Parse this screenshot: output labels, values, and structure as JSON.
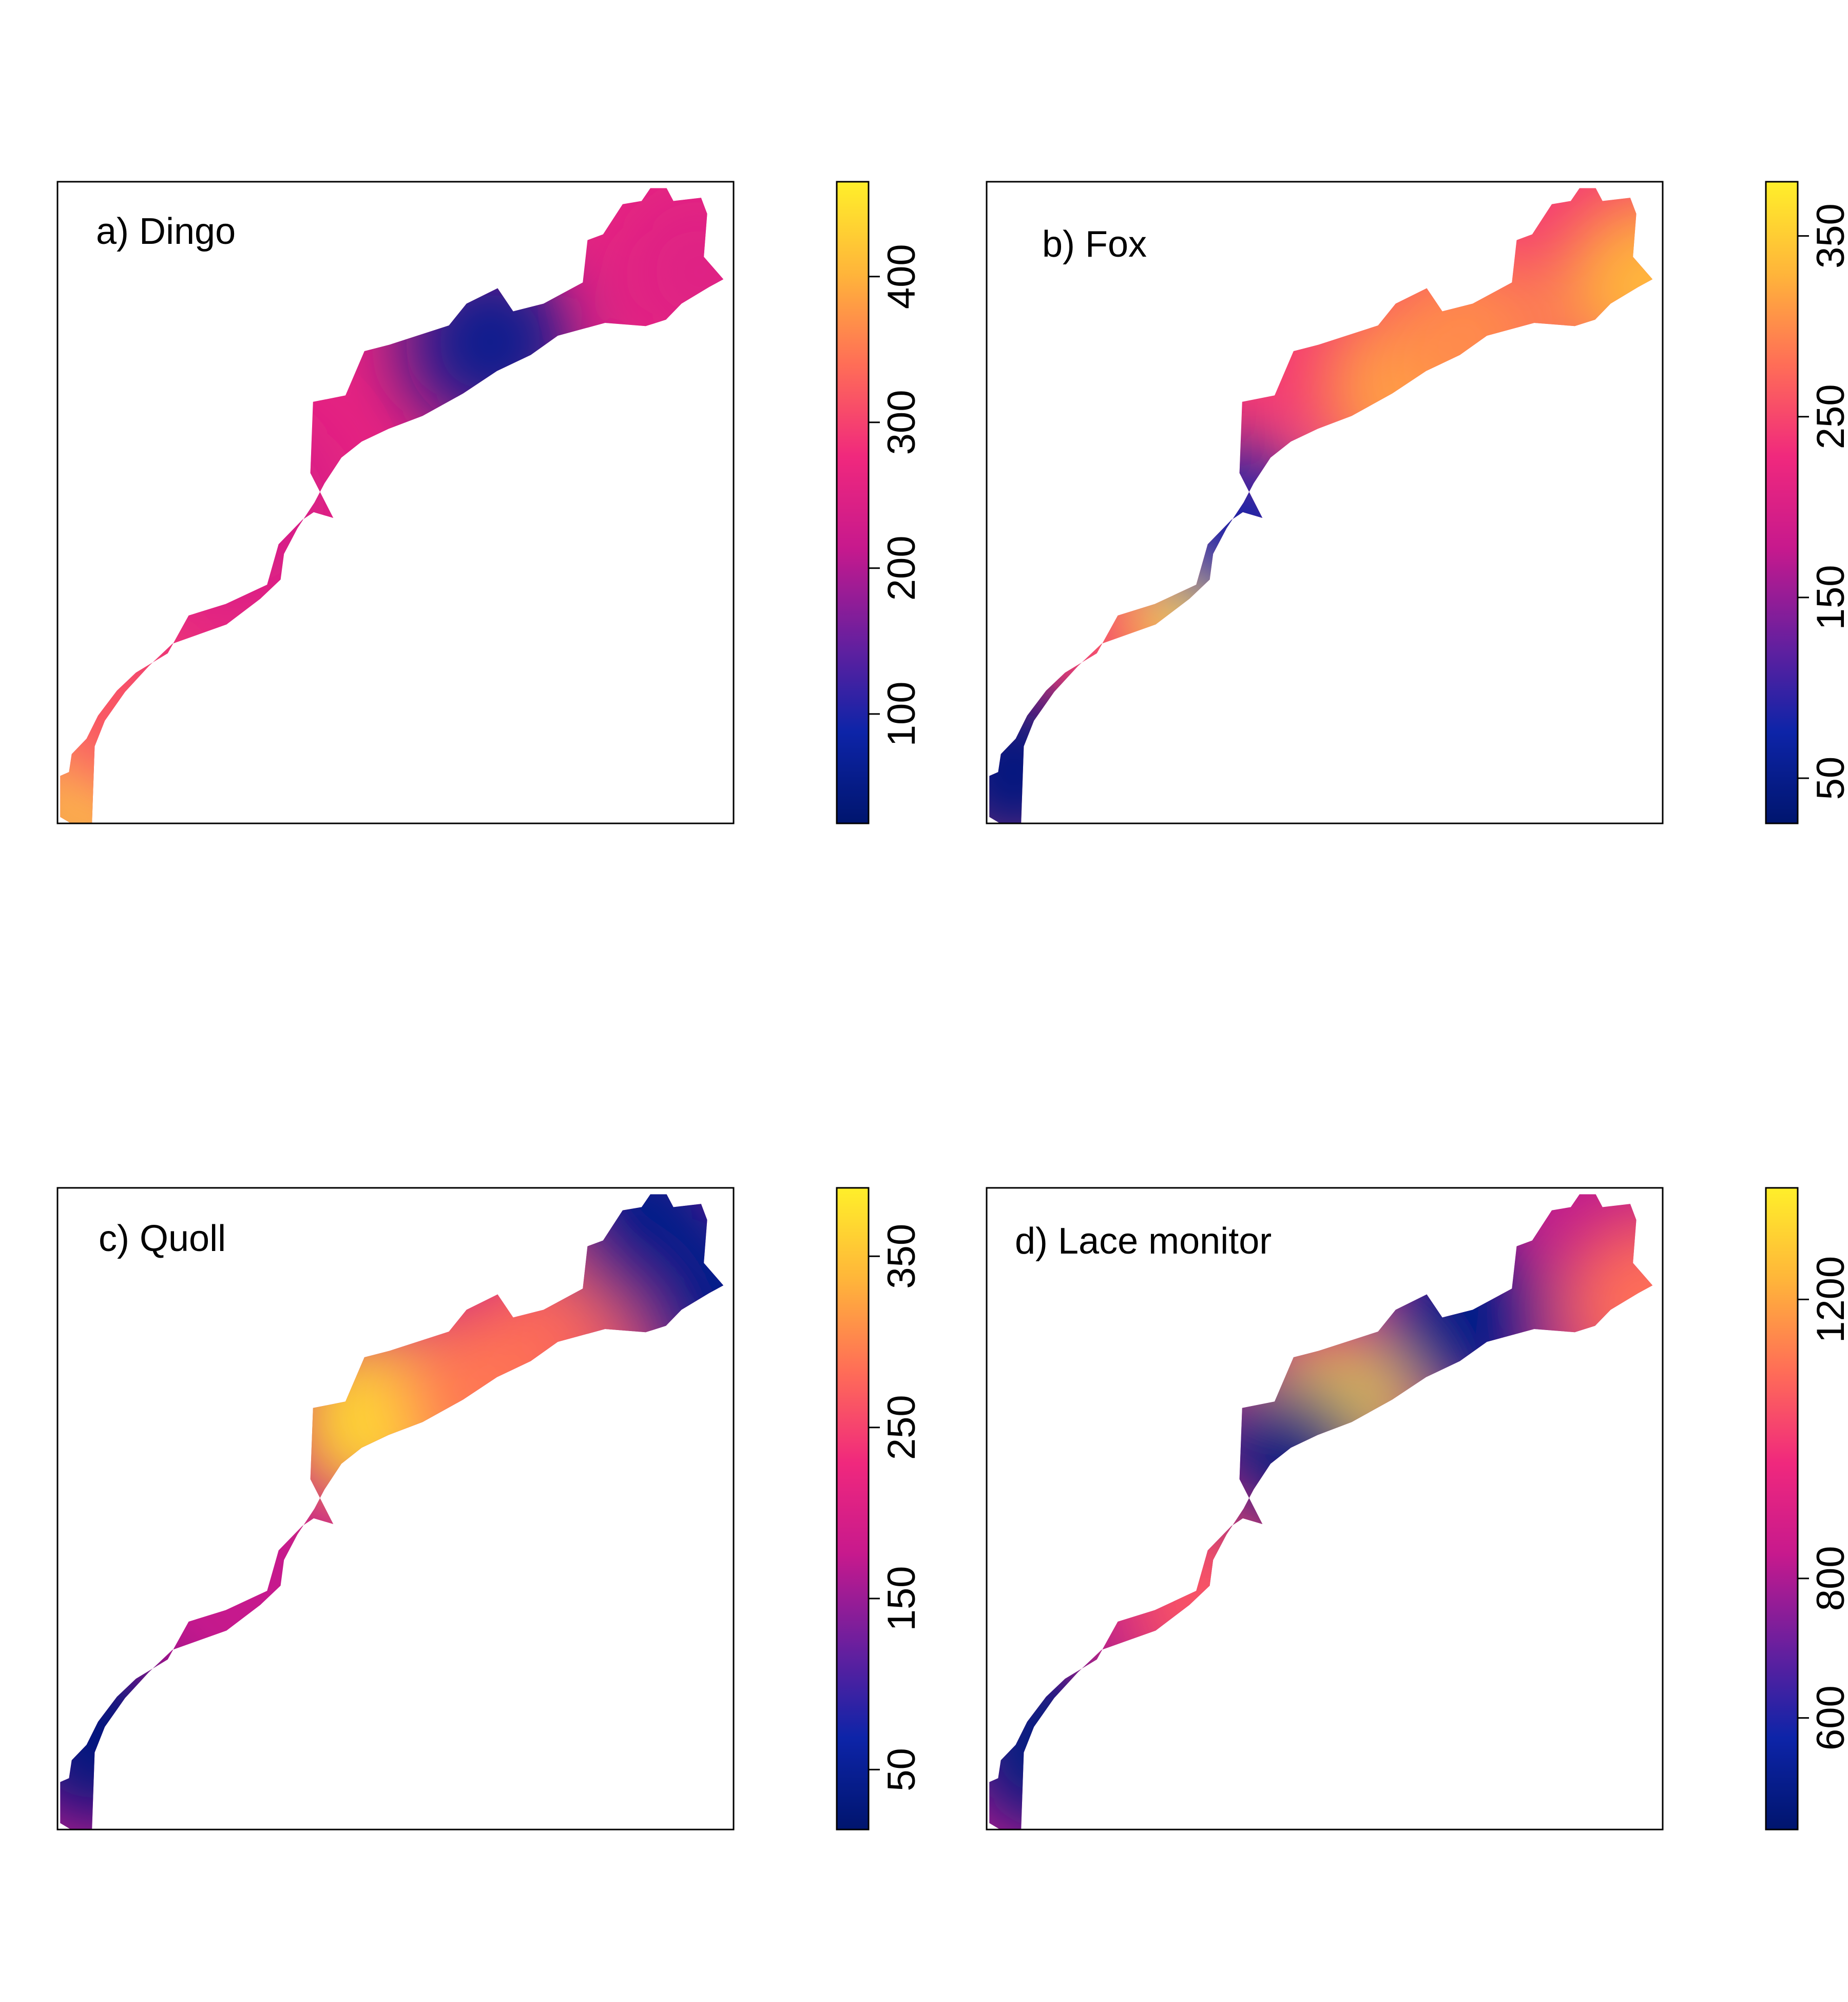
{
  "chart_data": [
    {
      "type": "heatmap",
      "title": "a) Dingo",
      "colorbar": {
        "range": [
          25,
          465
        ],
        "ticks": [
          100,
          200,
          300,
          400
        ],
        "colors": [
          "#00156e",
          "#0d24a8",
          "#6a1f9e",
          "#c7198d",
          "#f0287d",
          "#ff6d57",
          "#ffb53a",
          "#ffef2a"
        ]
      },
      "hotspots": [
        {
          "x": 0.05,
          "y": 0.94,
          "value": 440
        },
        {
          "x": 0.09,
          "y": 0.85,
          "value": 320
        },
        {
          "x": 0.27,
          "y": 0.5,
          "value": 230
        },
        {
          "x": 0.95,
          "y": 0.14,
          "value": 250
        },
        {
          "x": 0.64,
          "y": 0.25,
          "value": 60
        }
      ]
    },
    {
      "type": "heatmap",
      "title": "b) Fox",
      "colorbar": {
        "range": [
          25,
          380
        ],
        "ticks": [
          50,
          150,
          250,
          350
        ],
        "colors": [
          "#00156e",
          "#0d24a8",
          "#6a1f9e",
          "#c7198d",
          "#f0287d",
          "#ff6d57",
          "#ffb53a",
          "#ffef2a"
        ]
      },
      "hotspots": [
        {
          "x": 0.63,
          "y": 0.32,
          "value": 320
        },
        {
          "x": 0.71,
          "y": 0.24,
          "value": 300
        },
        {
          "x": 0.33,
          "y": 0.66,
          "value": 370
        },
        {
          "x": 0.04,
          "y": 0.92,
          "value": 40
        },
        {
          "x": 0.37,
          "y": 0.55,
          "value": 80
        },
        {
          "x": 0.98,
          "y": 0.16,
          "value": 330
        }
      ]
    },
    {
      "type": "heatmap",
      "title": "c) Quoll",
      "colorbar": {
        "range": [
          15,
          390
        ],
        "ticks": [
          50,
          150,
          250,
          350
        ],
        "colors": [
          "#00156e",
          "#0d24a8",
          "#6a1f9e",
          "#c7198d",
          "#f0287d",
          "#ff6d57",
          "#ffb53a",
          "#ffef2a"
        ]
      },
      "hotspots": [
        {
          "x": 0.47,
          "y": 0.36,
          "value": 370
        },
        {
          "x": 0.63,
          "y": 0.31,
          "value": 290
        },
        {
          "x": 0.79,
          "y": 0.17,
          "value": 280
        },
        {
          "x": 0.06,
          "y": 0.86,
          "value": 30
        },
        {
          "x": 0.86,
          "y": 0.05,
          "value": 40
        },
        {
          "x": 0.97,
          "y": 0.18,
          "value": 40
        }
      ]
    },
    {
      "type": "heatmap",
      "title": "d) Lace monitor",
      "colorbar": {
        "range": [
          440,
          1360
        ],
        "ticks": [
          600,
          800,
          1200
        ],
        "colors": [
          "#00156e",
          "#0d24a8",
          "#6a1f9e",
          "#c7198d",
          "#f0287d",
          "#ff6d57",
          "#ffb53a",
          "#ffef2a"
        ]
      },
      "hotspots": [
        {
          "x": 0.5,
          "y": 0.37,
          "value": 1330
        },
        {
          "x": 0.33,
          "y": 0.64,
          "value": 1050
        },
        {
          "x": 0.09,
          "y": 0.87,
          "value": 480
        },
        {
          "x": 0.45,
          "y": 0.43,
          "value": 480
        },
        {
          "x": 0.71,
          "y": 0.21,
          "value": 500
        },
        {
          "x": 0.98,
          "y": 0.18,
          "value": 1100
        }
      ]
    }
  ]
}
